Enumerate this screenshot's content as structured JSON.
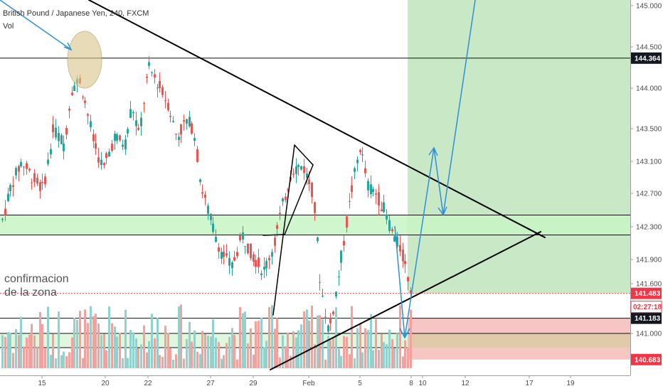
{
  "chart_header": {
    "symbol_title": "British Pound / Japanese Yen, 240, FXCM",
    "volume_label": "Vol"
  },
  "annotation": {
    "line1": "confirmacion",
    "line2": "de la zona"
  },
  "chart_data": {
    "type": "candlestick",
    "instrument": "GBP/JPY",
    "timeframe": "240",
    "source": "FXCM",
    "x_ticks": [
      "15",
      "20",
      "22",
      "27",
      "29",
      "Feb",
      "5",
      "8",
      "10",
      "12",
      "17",
      "19"
    ],
    "y_ticks": [
      "145.000",
      "144.500",
      "144.000",
      "143.500",
      "143.100",
      "142.700",
      "142.300",
      "141.900",
      "141.600",
      "141.000"
    ],
    "ylim": [
      140.55,
      145.05
    ],
    "price_tags": [
      {
        "value": 144.364,
        "label": "144.364",
        "style": "dark"
      },
      {
        "value": 141.483,
        "label": "141.483",
        "style": "red"
      },
      {
        "value": 141.183,
        "label": "141.183",
        "style": "dark"
      },
      {
        "value": 140.683,
        "label": "140.683",
        "style": "red"
      }
    ],
    "countdown_label": "02:27:18",
    "horizontal_levels": [
      144.364,
      142.44,
      142.2,
      141.183,
      141.0
    ],
    "support_zone": [
      142.2,
      142.44
    ],
    "take_profit_zone": [
      141.483,
      145.1
    ],
    "stop_loss_zone": [
      140.683,
      141.183
    ],
    "colors": {
      "bull": "#26a69a",
      "bear": "#ef5350",
      "bull_volume": "#92d1cc",
      "bear_volume": "#f4a19e",
      "trendline": "#000000",
      "projection_arrow": "#2e8fd8",
      "tp_zone": "#c9e9c6",
      "sl_zone": "#f6c6c4",
      "sr_zone": "#c8f5c4"
    }
  }
}
